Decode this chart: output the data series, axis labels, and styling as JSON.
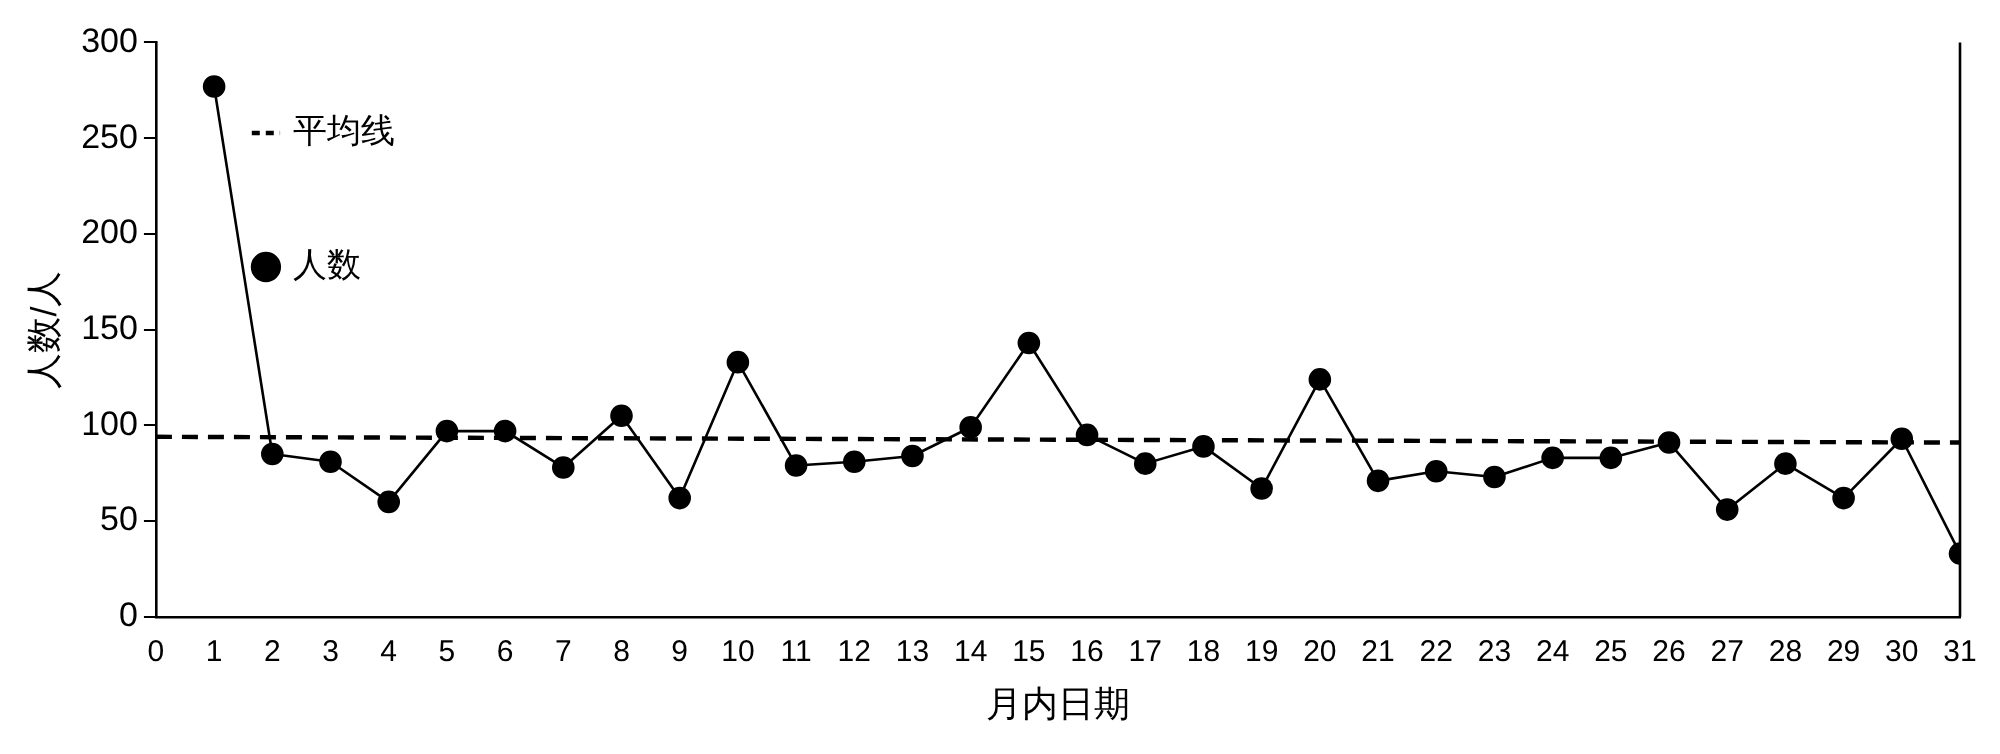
{
  "chart_data": {
    "type": "line",
    "xlabel": "月内日期",
    "ylabel": "人数/人",
    "xlim": [
      0,
      31
    ],
    "xticks": [
      0,
      1,
      2,
      3,
      4,
      5,
      6,
      7,
      8,
      9,
      10,
      11,
      12,
      13,
      14,
      15,
      16,
      17,
      18,
      19,
      20,
      21,
      22,
      23,
      24,
      25,
      26,
      27,
      28,
      29,
      30,
      31
    ],
    "ylim": [
      0,
      300
    ],
    "yticks": [
      0,
      50,
      100,
      150,
      200,
      250,
      300
    ],
    "grid": false,
    "legend": "top left",
    "series": [
      {
        "name": "平均线",
        "type": "line",
        "color": "#000000",
        "line_style": "dashed",
        "marker": "none",
        "x": [
          0,
          31
        ],
        "values": [
          94,
          91
        ]
      },
      {
        "name": "人数",
        "type": "line",
        "color": "#000000",
        "line_style": "solid",
        "marker": "circle",
        "x": [
          1,
          2,
          3,
          4,
          5,
          6,
          7,
          8,
          9,
          10,
          11,
          12,
          13,
          14,
          15,
          16,
          17,
          18,
          19,
          20,
          21,
          22,
          23,
          24,
          25,
          26,
          27,
          28,
          29,
          30,
          31
        ],
        "values": [
          277,
          85,
          81,
          60,
          97,
          97,
          78,
          105,
          62,
          133,
          79,
          81,
          84,
          99,
          143,
          95,
          80,
          89,
          67,
          124,
          71,
          76,
          73,
          83,
          83,
          91,
          56,
          80,
          62,
          93,
          33
        ]
      }
    ]
  }
}
